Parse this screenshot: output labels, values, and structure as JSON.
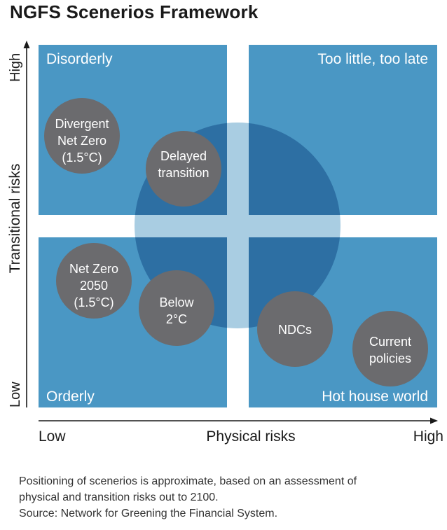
{
  "title": "NGFS Scenerios Framework",
  "colors": {
    "quadrant": "#4a97c4",
    "big_circle": "#2d6fa3",
    "cross": "#a9cde2",
    "scenario_circle": "#6b6b6e",
    "axis": "#1a1a1a"
  },
  "quadrants": {
    "top_left": "Disorderly",
    "top_right": "Too little, too late",
    "bottom_left": "Orderly",
    "bottom_right": "Hot house world"
  },
  "axes": {
    "y_label": "Transitional risks",
    "y_high": "High",
    "y_low": "Low",
    "x_label": "Physical risks",
    "x_low": "Low",
    "x_high": "High"
  },
  "scenarios": [
    {
      "lines": [
        "Divergent",
        "Net Zero",
        "(1.5°C)"
      ]
    },
    {
      "lines": [
        "Delayed",
        "transition"
      ]
    },
    {
      "lines": [
        "Net Zero",
        "2050",
        "(1.5°C)"
      ]
    },
    {
      "lines": [
        "Below",
        "2°C"
      ]
    },
    {
      "lines": [
        "NDCs"
      ]
    },
    {
      "lines": [
        "Current",
        "policies"
      ]
    }
  ],
  "caption": {
    "line1": "Positioning of scenerios is approximate, based on an assessment of",
    "line2": "physical and transition risks out to 2100.",
    "line3": "Source: Network for Greening the Financial System."
  }
}
